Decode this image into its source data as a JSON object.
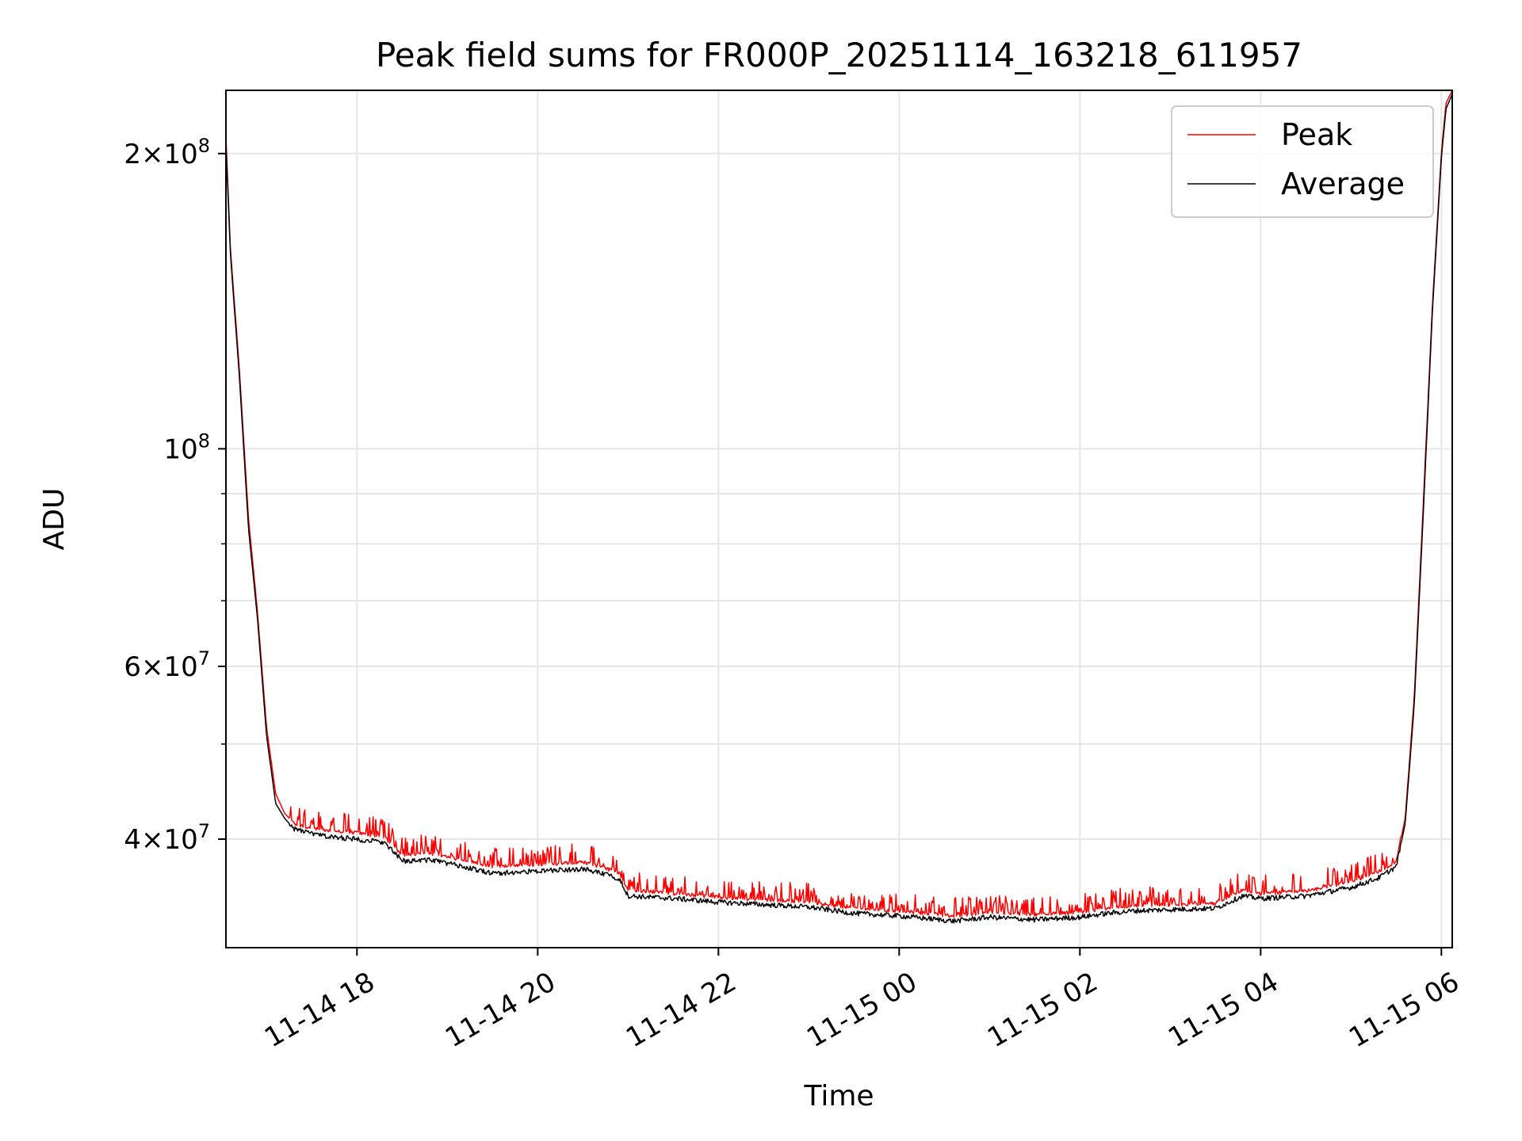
{
  "chart_data": {
    "type": "line",
    "title": "Peak field sums for FR000P_20251114_163218_611957",
    "xlabel": "Time",
    "ylabel": "ADU",
    "yscale": "log",
    "ylim": [
      31000000,
      232000000
    ],
    "xlim_hours": [
      16.55,
      30.12
    ],
    "grid": true,
    "legend_position": "upper right",
    "x_ticks": [
      {
        "hour": 18,
        "label": "11-14 18"
      },
      {
        "hour": 20,
        "label": "11-14 20"
      },
      {
        "hour": 22,
        "label": "11-14 22"
      },
      {
        "hour": 24,
        "label": "11-15 00"
      },
      {
        "hour": 26,
        "label": "11-15 02"
      },
      {
        "hour": 28,
        "label": "11-15 04"
      },
      {
        "hour": 30,
        "label": "11-15 06"
      }
    ],
    "y_ticks": [
      {
        "value": 40000000,
        "mant": "4",
        "exp": "7"
      },
      {
        "value": 60000000,
        "mant": "6",
        "exp": "7"
      },
      {
        "value": 100000000,
        "mant": "10",
        "exp": "8"
      },
      {
        "value": 200000000,
        "mant": "2",
        "exp": "8"
      }
    ],
    "y_minor_ticks": [
      50000000,
      70000000,
      80000000,
      90000000
    ],
    "series": [
      {
        "name": "Peak",
        "color": "#ff0000",
        "x_hours": [
          16.55,
          16.6,
          16.7,
          16.8,
          16.9,
          17.0,
          17.1,
          17.2,
          17.3,
          17.5,
          17.7,
          18.0,
          18.3,
          18.5,
          18.8,
          19.0,
          19.5,
          20.0,
          20.5,
          20.9,
          21.0,
          21.5,
          22.0,
          22.5,
          23.0,
          23.5,
          24.0,
          24.3,
          24.6,
          25.0,
          25.5,
          26.0,
          26.3,
          26.6,
          27.0,
          27.5,
          27.8,
          28.0,
          28.5,
          29.0,
          29.3,
          29.5,
          29.6,
          29.7,
          29.8,
          29.9,
          30.0,
          30.05,
          30.12
        ],
        "values": [
          208000000,
          160000000,
          120000000,
          85000000,
          68000000,
          52000000,
          44500000,
          42500000,
          41500000,
          41000000,
          40800000,
          40600000,
          40200000,
          38500000,
          38700000,
          38400000,
          37500000,
          37700000,
          37900000,
          37000000,
          35500000,
          35200000,
          34900000,
          34700000,
          34500000,
          34000000,
          33800000,
          33600000,
          33400000,
          33700000,
          33500000,
          33700000,
          34000000,
          34200000,
          34300000,
          34400000,
          35500000,
          35200000,
          35400000,
          36200000,
          37000000,
          38000000,
          42000000,
          56000000,
          88000000,
          140000000,
          200000000,
          225000000,
          232000000
        ]
      },
      {
        "name": "Average",
        "color": "#000000",
        "x_hours": [
          16.55,
          16.6,
          16.7,
          16.8,
          16.9,
          17.0,
          17.1,
          17.2,
          17.3,
          17.5,
          17.7,
          18.0,
          18.3,
          18.5,
          18.8,
          19.0,
          19.5,
          20.0,
          20.5,
          20.9,
          21.0,
          21.5,
          22.0,
          22.5,
          23.0,
          23.5,
          24.0,
          24.3,
          24.6,
          25.0,
          25.5,
          26.0,
          26.3,
          26.6,
          27.0,
          27.5,
          27.8,
          28.0,
          28.5,
          29.0,
          29.3,
          29.5,
          29.6,
          29.7,
          29.8,
          29.9,
          30.0,
          30.05,
          30.12
        ],
        "values": [
          205000000,
          158000000,
          118000000,
          83000000,
          67000000,
          51000000,
          43500000,
          42000000,
          41000000,
          40500000,
          40200000,
          40000000,
          39700000,
          38000000,
          38100000,
          37800000,
          36900000,
          37100000,
          37300000,
          36500000,
          35000000,
          34800000,
          34500000,
          34300000,
          34100000,
          33600000,
          33400000,
          33200000,
          33000000,
          33300000,
          33100000,
          33300000,
          33600000,
          33800000,
          33900000,
          34000000,
          35000000,
          34800000,
          35000000,
          35700000,
          36500000,
          37500000,
          41500000,
          55000000,
          86000000,
          138000000,
          198000000,
          222000000,
          230000000
        ]
      }
    ]
  }
}
